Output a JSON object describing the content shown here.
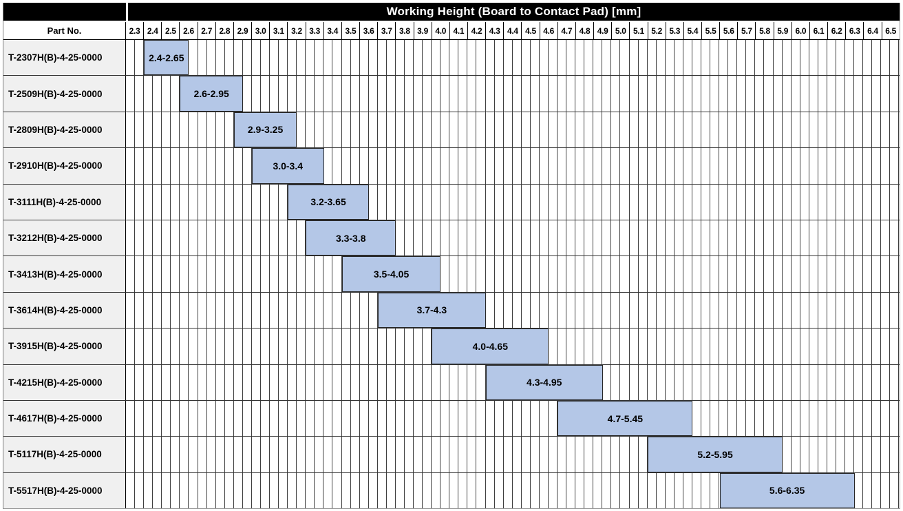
{
  "title": "Working Height (Board to Contact Pad) [mm]",
  "part_no_header": "Part No.",
  "colors": {
    "title_bg": "#000000",
    "title_text": "#ffffff",
    "bar_fill": "#b4c7e7",
    "bar_border": "#262626",
    "part_cell_bg": "#f0f0f0",
    "gridline": "#3f3f3f"
  },
  "chart_data": {
    "type": "bar",
    "variant": "horizontal-range-gantt",
    "title": "Working Height (Board to Contact Pad) [mm]",
    "xlabel": "Working Height [mm]",
    "ylabel": "Part No.",
    "grid": "on",
    "legend": "none",
    "axis": {
      "min": 2.3,
      "max": 6.6,
      "major_step": 0.1,
      "minor_step": 0.05
    },
    "x_ticks": [
      "2.3",
      "2.4",
      "2.5",
      "2.6",
      "2.7",
      "2.8",
      "2.9",
      "3.0",
      "3.1",
      "3.2",
      "3.3",
      "3.4",
      "3.5",
      "3.6",
      "3.7",
      "3.8",
      "3.9",
      "4.0",
      "4.1",
      "4.2",
      "4.3",
      "4.4",
      "4.5",
      "4.6",
      "4.7",
      "4.8",
      "4.9",
      "5.0",
      "5.1",
      "5.2",
      "5.3",
      "5.4",
      "5.5",
      "5.6",
      "5.7",
      "5.8",
      "5.9",
      "6.0",
      "6.1",
      "6.2",
      "6.3",
      "6.4",
      "6.5"
    ],
    "rows": [
      {
        "part_no": "T-2307H(B)-4-25-0000",
        "start": 2.4,
        "end": 2.65,
        "label": "2.4-2.65"
      },
      {
        "part_no": "T-2509H(B)-4-25-0000",
        "start": 2.6,
        "end": 2.95,
        "label": "2.6-2.95"
      },
      {
        "part_no": "T-2809H(B)-4-25-0000",
        "start": 2.9,
        "end": 3.25,
        "label": "2.9-3.25"
      },
      {
        "part_no": "T-2910H(B)-4-25-0000",
        "start": 3.0,
        "end": 3.4,
        "label": "3.0-3.4"
      },
      {
        "part_no": "T-3111H(B)-4-25-0000",
        "start": 3.2,
        "end": 3.65,
        "label": "3.2-3.65"
      },
      {
        "part_no": "T-3212H(B)-4-25-0000",
        "start": 3.3,
        "end": 3.8,
        "label": "3.3-3.8"
      },
      {
        "part_no": "T-3413H(B)-4-25-0000",
        "start": 3.5,
        "end": 4.05,
        "label": "3.5-4.05"
      },
      {
        "part_no": "T-3614H(B)-4-25-0000",
        "start": 3.7,
        "end": 4.3,
        "label": "3.7-4.3"
      },
      {
        "part_no": "T-3915H(B)-4-25-0000",
        "start": 4.0,
        "end": 4.65,
        "label": "4.0-4.65"
      },
      {
        "part_no": "T-4215H(B)-4-25-0000",
        "start": 4.3,
        "end": 4.95,
        "label": "4.3-4.95"
      },
      {
        "part_no": "T-4617H(B)-4-25-0000",
        "start": 4.7,
        "end": 5.45,
        "label": "4.7-5.45"
      },
      {
        "part_no": "T-5117H(B)-4-25-0000",
        "start": 5.2,
        "end": 5.95,
        "label": "5.2-5.95"
      },
      {
        "part_no": "T-5517H(B)-4-25-0000",
        "start": 5.6,
        "end": 6.35,
        "label": "5.6-6.35"
      }
    ]
  }
}
